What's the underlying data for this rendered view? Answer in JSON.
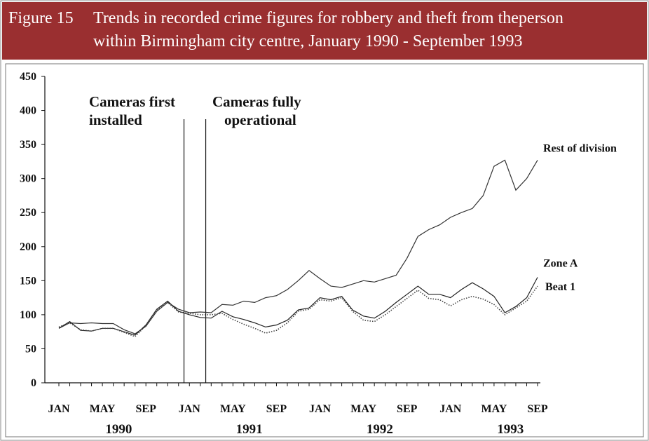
{
  "chart_data": {
    "type": "line",
    "figure_label": "Figure 15",
    "title_lines": [
      "Trends in recorded crime figures for robbery and theft from theperson",
      "within Birmingham city centre, January 1990 - September 1993"
    ],
    "categories": [
      "JAN",
      null,
      null,
      null,
      "MAY",
      null,
      null,
      null,
      "SEP",
      null,
      null,
      null,
      "JAN",
      null,
      null,
      null,
      "MAY",
      null,
      null,
      null,
      "SEP",
      null,
      null,
      null,
      "JAN",
      null,
      null,
      null,
      "MAY",
      null,
      null,
      null,
      "SEP",
      null,
      null,
      null,
      "JAN",
      null,
      null,
      null,
      "MAY",
      null,
      null,
      null,
      "SEP"
    ],
    "years": [
      "1990",
      "1991",
      "1992",
      "1993"
    ],
    "ylim": [
      0,
      450
    ],
    "yticks": [
      0,
      50,
      100,
      150,
      200,
      250,
      300,
      350,
      400,
      450
    ],
    "series": [
      {
        "name": "Rest of division",
        "color": "#333333",
        "dash": "none",
        "values": [
          80,
          88,
          87,
          88,
          87,
          87,
          78,
          72,
          83,
          105,
          118,
          108,
          103,
          104,
          103,
          115,
          114,
          120,
          118,
          125,
          128,
          137,
          150,
          165,
          153,
          142,
          140,
          145,
          150,
          148,
          153,
          158,
          183,
          215,
          225,
          232,
          243,
          250,
          256,
          275,
          318,
          327,
          283,
          300,
          327
        ]
      },
      {
        "name": "Zone A",
        "color": "#222222",
        "dash": "none",
        "values": [
          80,
          90,
          77,
          76,
          80,
          80,
          75,
          70,
          85,
          108,
          120,
          105,
          100,
          96,
          95,
          105,
          97,
          93,
          88,
          82,
          85,
          92,
          107,
          110,
          125,
          122,
          127,
          107,
          98,
          95,
          105,
          118,
          130,
          142,
          130,
          130,
          125,
          137,
          147,
          138,
          127,
          103,
          112,
          125,
          155
        ]
      },
      {
        "name": "Beat 1",
        "color": "#444444",
        "dash": "1.5 2",
        "values": [
          82,
          88,
          78,
          76,
          80,
          80,
          74,
          68,
          84,
          107,
          118,
          104,
          102,
          100,
          100,
          102,
          93,
          86,
          80,
          73,
          77,
          88,
          105,
          108,
          122,
          120,
          125,
          105,
          92,
          90,
          100,
          112,
          124,
          136,
          124,
          122,
          113,
          122,
          127,
          123,
          115,
          100,
          110,
          120,
          142
        ]
      }
    ],
    "annotations": [
      {
        "text": [
          "Cameras first",
          "installed"
        ],
        "x": 11.5
      },
      {
        "text": [
          "Cameras fully",
          "operational"
        ],
        "x": 13.5
      }
    ]
  }
}
